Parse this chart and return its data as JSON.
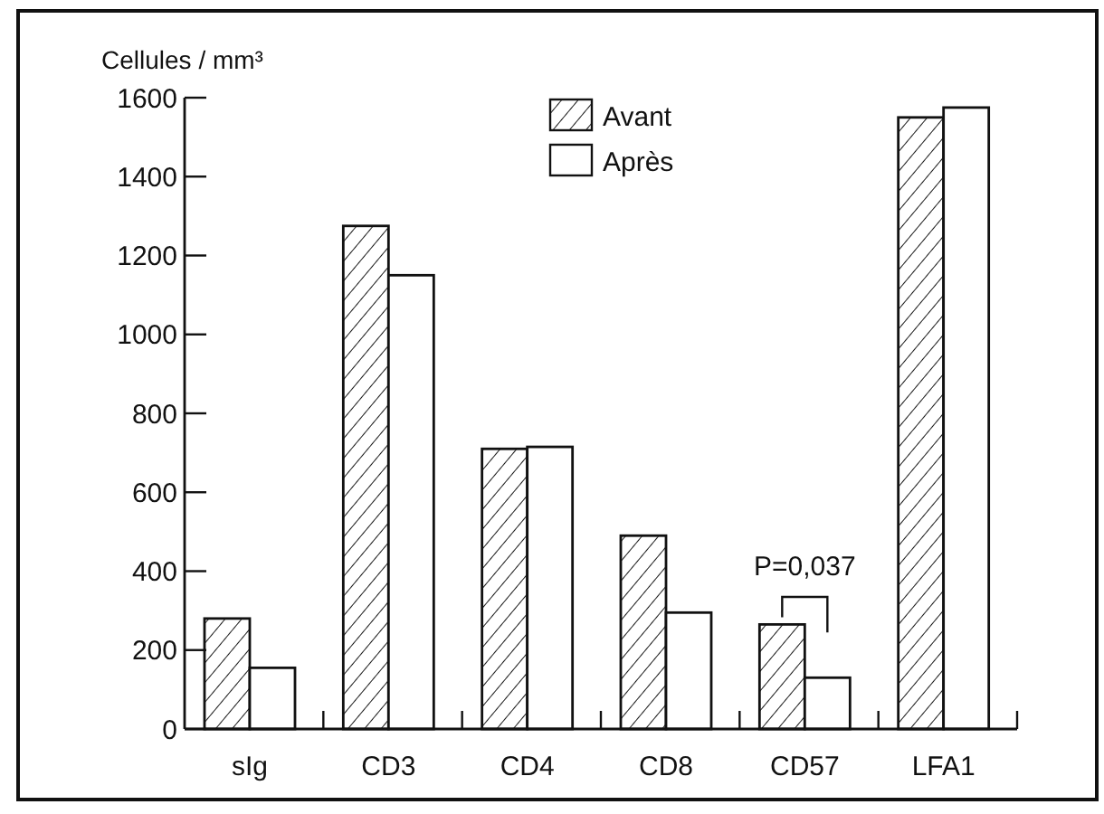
{
  "chart_data": {
    "type": "bar",
    "ylabel": "Cellules / mm³",
    "categories": [
      "sIg",
      "CD3",
      "CD4",
      "CD8",
      "CD57",
      "LFA1"
    ],
    "series": [
      {
        "name": "Avant",
        "color": "#1a1a1a",
        "values": [
          280,
          1275,
          710,
          490,
          265,
          1550
        ]
      },
      {
        "name": "Après",
        "color": "#ffffff",
        "values": [
          155,
          1150,
          715,
          295,
          130,
          1575
        ]
      }
    ],
    "ylim": [
      0,
      1600
    ],
    "yticks": [
      0,
      200,
      400,
      600,
      800,
      1000,
      1200,
      1400,
      1600
    ],
    "annotations": [
      "P=0,037"
    ],
    "legend": "top",
    "grid": false
  }
}
